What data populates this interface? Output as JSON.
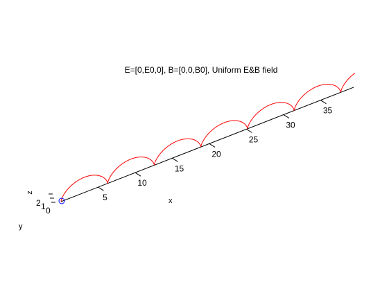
{
  "chart_data": {
    "type": "line",
    "title": "E=[0,E0,0], B=[0,0,B0], Uniform E&B field",
    "xlabel": "x",
    "ylabel": "y",
    "zlabel": "z",
    "x_ticks": [
      "5",
      "10",
      "15",
      "20",
      "25",
      "30",
      "35"
    ],
    "y_ticks": [
      "0",
      "1"
    ],
    "z_ticks": [
      "2"
    ],
    "xlim": [
      0,
      40
    ],
    "grid": false,
    "series": [
      {
        "kind": "trajectory",
        "color": "#ff0000",
        "period_x": 6.283,
        "arc_count": 6.4
      }
    ],
    "start_marker": {
      "shape": "circle",
      "color": "#0000ff",
      "x": 0,
      "y": 0,
      "z": 0
    },
    "axis_color": "#000000"
  }
}
